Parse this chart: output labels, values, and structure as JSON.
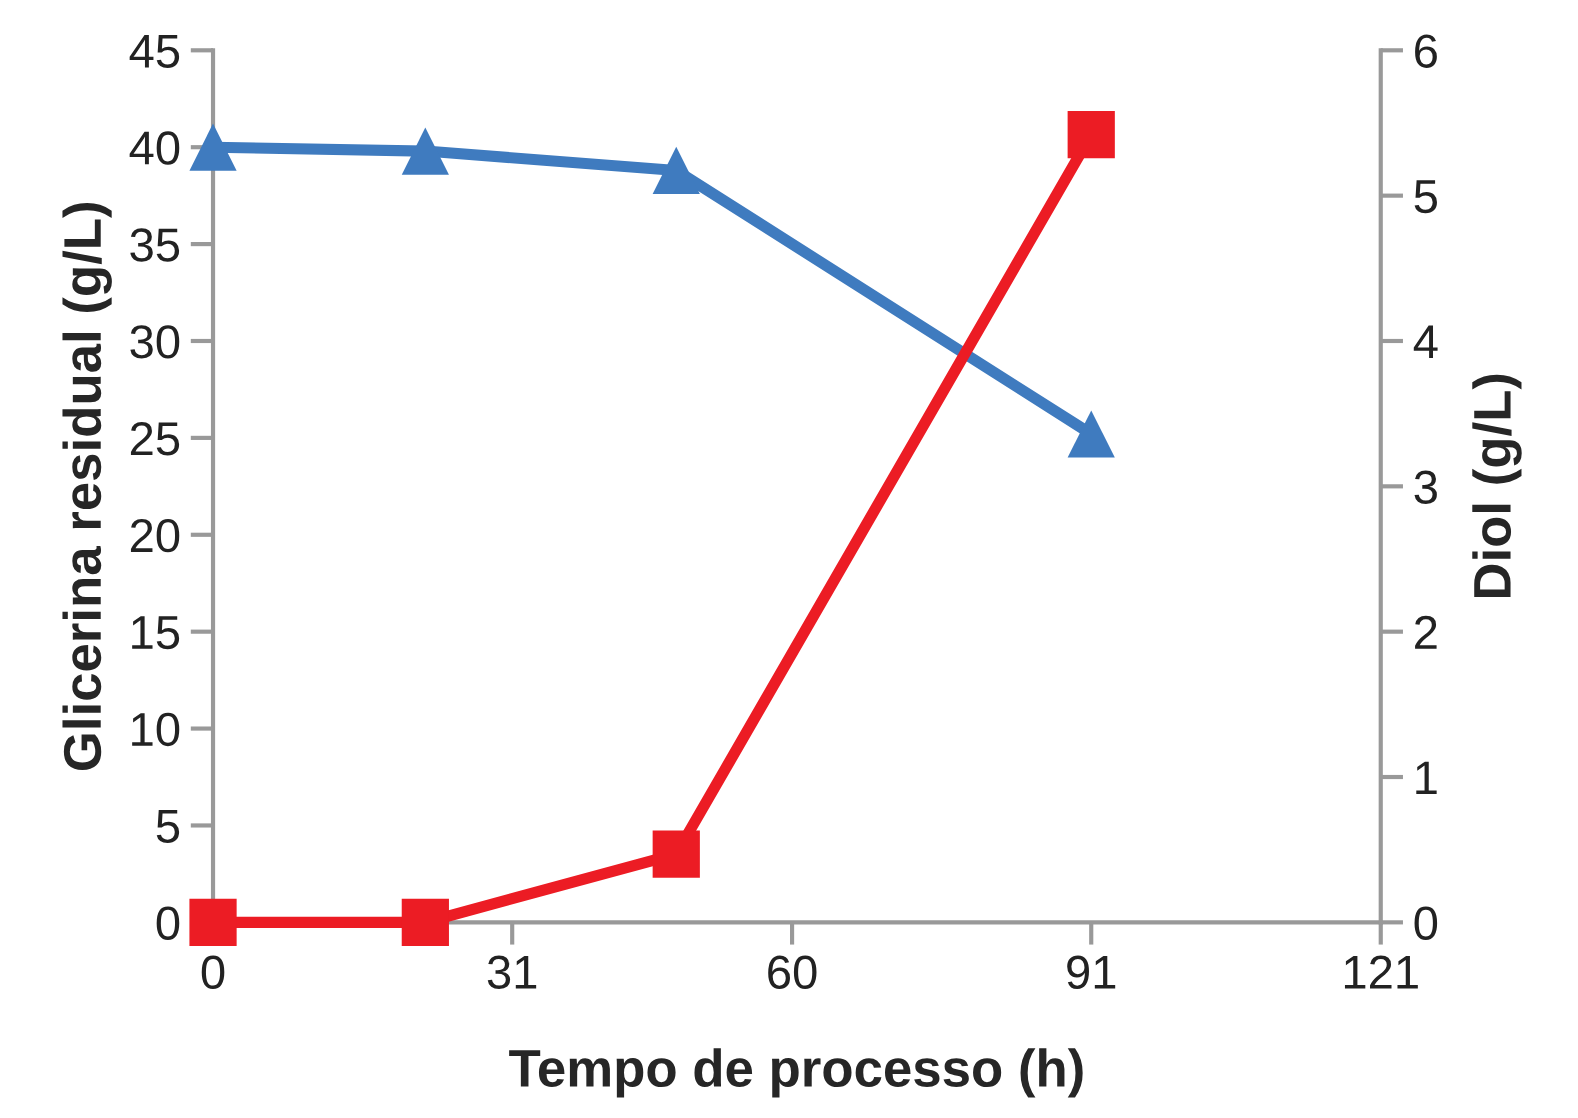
{
  "chart_data": {
    "type": "line",
    "xlabel": "Tempo de processo (h)",
    "ylabel": "Glicerina residual (g/L)",
    "y2label": "Diol (g/L)",
    "x": [
      0,
      22,
      48,
      91
    ],
    "series": [
      {
        "color": "#3f7bbf",
        "values": [
          40.0,
          39.8,
          38.8,
          25.2
        ],
        "marker": "triangle"
      },
      {
        "color": "#ec1c24",
        "values": [
          0,
          0,
          0.47,
          5.42
        ],
        "marker": "square",
        "axis": "y2"
      }
    ],
    "xlim": [
      0,
      121
    ],
    "xticks": [
      0,
      31,
      60,
      91,
      121
    ],
    "ylim": [
      0,
      45
    ],
    "yticks": [
      0,
      5,
      10,
      15,
      20,
      25,
      30,
      35,
      40,
      45
    ],
    "y2lim": [
      0,
      6
    ],
    "y2ticks": [
      0,
      1,
      2,
      3,
      4,
      5,
      6
    ],
    "grid": false,
    "line_style": "solid"
  }
}
